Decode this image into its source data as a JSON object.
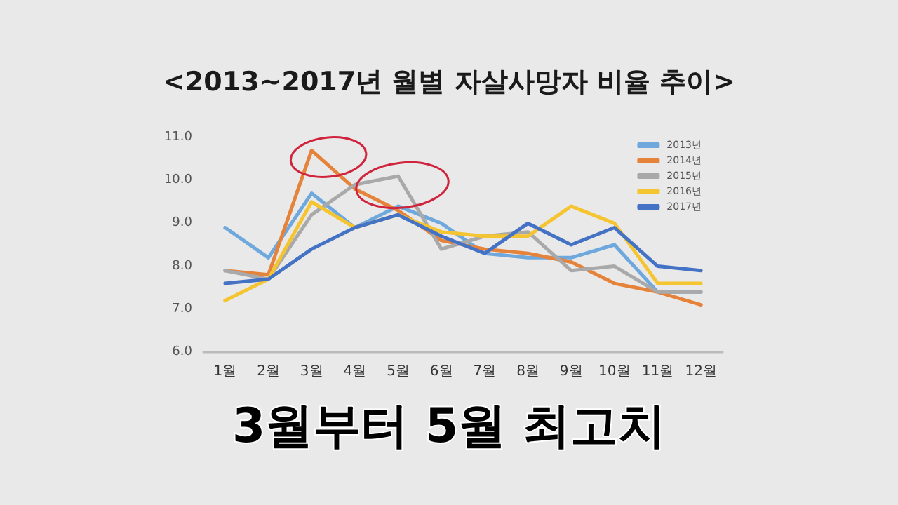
{
  "chart_data": {
    "type": "line",
    "title": "<2013~2017년 월별 자살사망자 비율 추이>",
    "categories": [
      "1월",
      "2월",
      "3월",
      "4월",
      "5월",
      "6월",
      "7월",
      "8월",
      "9월",
      "10월",
      "11월",
      "12월"
    ],
    "series": [
      {
        "name": "2013년",
        "color": "#6fa8dc",
        "values": [
          8.9,
          8.2,
          9.7,
          8.9,
          9.4,
          9.0,
          8.3,
          8.2,
          8.2,
          8.5,
          7.4,
          7.4
        ]
      },
      {
        "name": "2014년",
        "color": "#e6833a",
        "values": [
          7.9,
          7.8,
          10.7,
          9.8,
          9.3,
          8.6,
          8.4,
          8.3,
          8.1,
          7.6,
          7.4,
          7.1
        ]
      },
      {
        "name": "2015년",
        "color": "#a9a9a9",
        "values": [
          7.9,
          7.7,
          9.2,
          9.9,
          10.1,
          8.4,
          8.7,
          8.8,
          7.9,
          8.0,
          7.4,
          7.4
        ]
      },
      {
        "name": "2016년",
        "color": "#f5c431",
        "values": [
          7.2,
          7.7,
          9.5,
          8.9,
          9.2,
          8.8,
          8.7,
          8.7,
          9.4,
          9.0,
          7.6,
          7.6
        ]
      },
      {
        "name": "2017년",
        "color": "#4472c4",
        "values": [
          7.6,
          7.7,
          8.4,
          8.9,
          9.2,
          8.7,
          8.3,
          9.0,
          8.5,
          8.9,
          8.0,
          7.9
        ]
      }
    ],
    "ylim": [
      6,
      11
    ],
    "yticks": [
      {
        "value": 6,
        "label": "6.0"
      },
      {
        "value": 7,
        "label": "7.0"
      },
      {
        "value": 8,
        "label": "8.0"
      },
      {
        "value": 9,
        "label": "9.0"
      },
      {
        "value": 10,
        "label": "10.0"
      },
      {
        "value": 11,
        "label": "11.0"
      }
    ],
    "grid": false,
    "legend": "top right",
    "marker": "none",
    "line_style": "solid",
    "annotations": [
      "3월부터 5월 최고치"
    ]
  }
}
